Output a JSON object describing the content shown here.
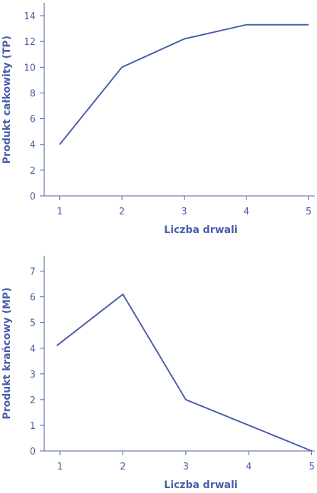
{
  "colors": {
    "accent": "#4a5ea8"
  },
  "chart_data": [
    {
      "type": "line",
      "title": "",
      "xlabel": "Liczba drwali",
      "ylabel": "Produkt całkowity (TP)",
      "xlim": [
        0.75,
        5.1
      ],
      "ylim": [
        0,
        15
      ],
      "x_ticks": [
        1,
        2,
        3,
        4,
        5
      ],
      "y_ticks": [
        0,
        2,
        4,
        6,
        8,
        10,
        12,
        14
      ],
      "grid": false,
      "series": [
        {
          "x": [
            1,
            2,
            3,
            4,
            5
          ],
          "y": [
            4,
            10,
            12.2,
            13.3,
            13.3
          ]
        }
      ]
    },
    {
      "type": "line",
      "title": "",
      "xlabel": "Liczba drwali",
      "ylabel": "Produkt krańcowy (MP)",
      "xlim": [
        0.75,
        5.05
      ],
      "ylim": [
        0,
        7.6
      ],
      "x_ticks": [
        1,
        2,
        3,
        4,
        5
      ],
      "y_ticks": [
        0,
        1,
        2,
        3,
        4,
        5,
        6,
        7
      ],
      "grid": false,
      "series": [
        {
          "x": [
            0.95,
            2,
            3,
            4,
            5
          ],
          "y": [
            4.1,
            6.1,
            2.0,
            1.0,
            0
          ]
        }
      ]
    }
  ]
}
